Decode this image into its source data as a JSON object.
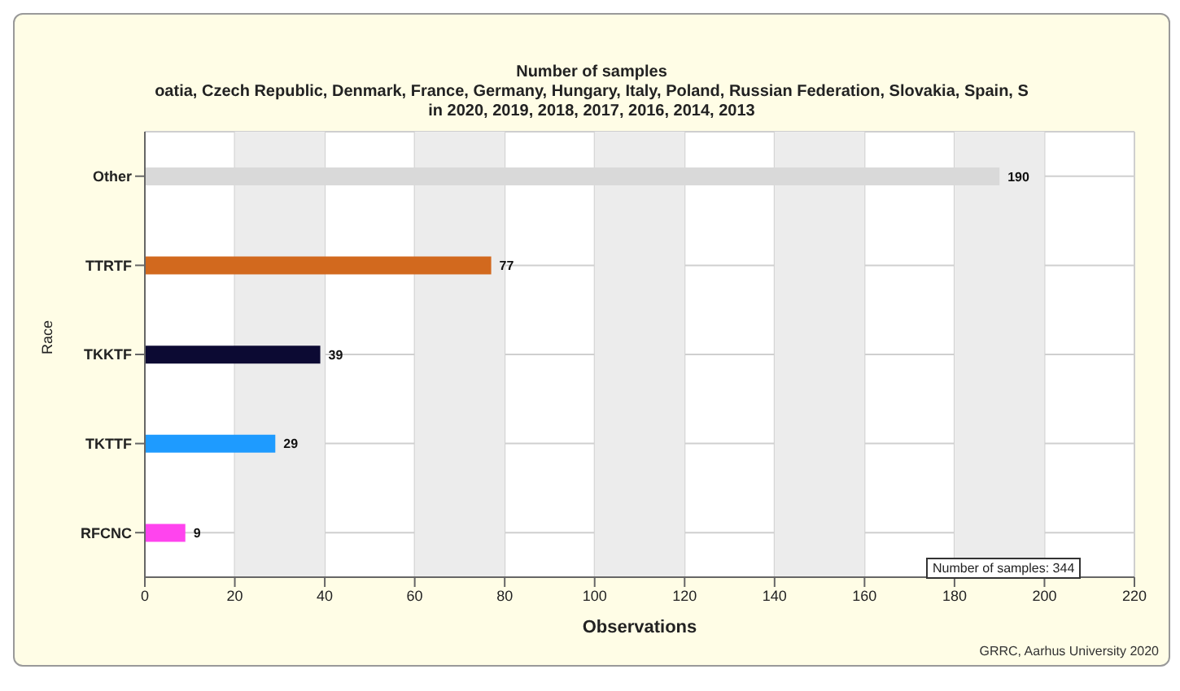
{
  "chart_data": {
    "type": "bar",
    "orientation": "horizontal",
    "title": "Number of samples",
    "subtitle": "oatia, Czech Republic, Denmark, France, Germany, Hungary, Italy, Poland, Russian Federation, Slovakia, Spain, S\nin 2020, 2019, 2018, 2017, 2016, 2014, 2013",
    "xlabel": "Observations",
    "ylabel": "Race",
    "categories": [
      "Other",
      "TTRTF",
      "TKKTF",
      "TKTTF",
      "RFCNC"
    ],
    "values": [
      190,
      77,
      39,
      29,
      9
    ],
    "colors": [
      "#d9d9d9",
      "#d2691e",
      "#0c0a33",
      "#1e9bff",
      "#ff44ee"
    ],
    "xlim": [
      0,
      220
    ],
    "xticks": [
      0,
      20,
      40,
      60,
      80,
      100,
      120,
      140,
      160,
      180,
      200,
      220
    ],
    "bands": [
      {
        "axis": "x",
        "from": 20,
        "to": 40,
        "color": "#ececec"
      },
      {
        "axis": "x",
        "from": 60,
        "to": 80,
        "color": "#ececec"
      },
      {
        "axis": "x",
        "from": 100,
        "to": 120,
        "color": "#ececec"
      },
      {
        "axis": "x",
        "from": 140,
        "to": 160,
        "color": "#ececec"
      },
      {
        "axis": "x",
        "from": 180,
        "to": 200,
        "color": "#ececec"
      }
    ],
    "data_labels": true,
    "grid": true,
    "legend": false,
    "annotations": [
      "Number of samples: 344",
      "GRRC, Aarhus University 2020"
    ]
  }
}
